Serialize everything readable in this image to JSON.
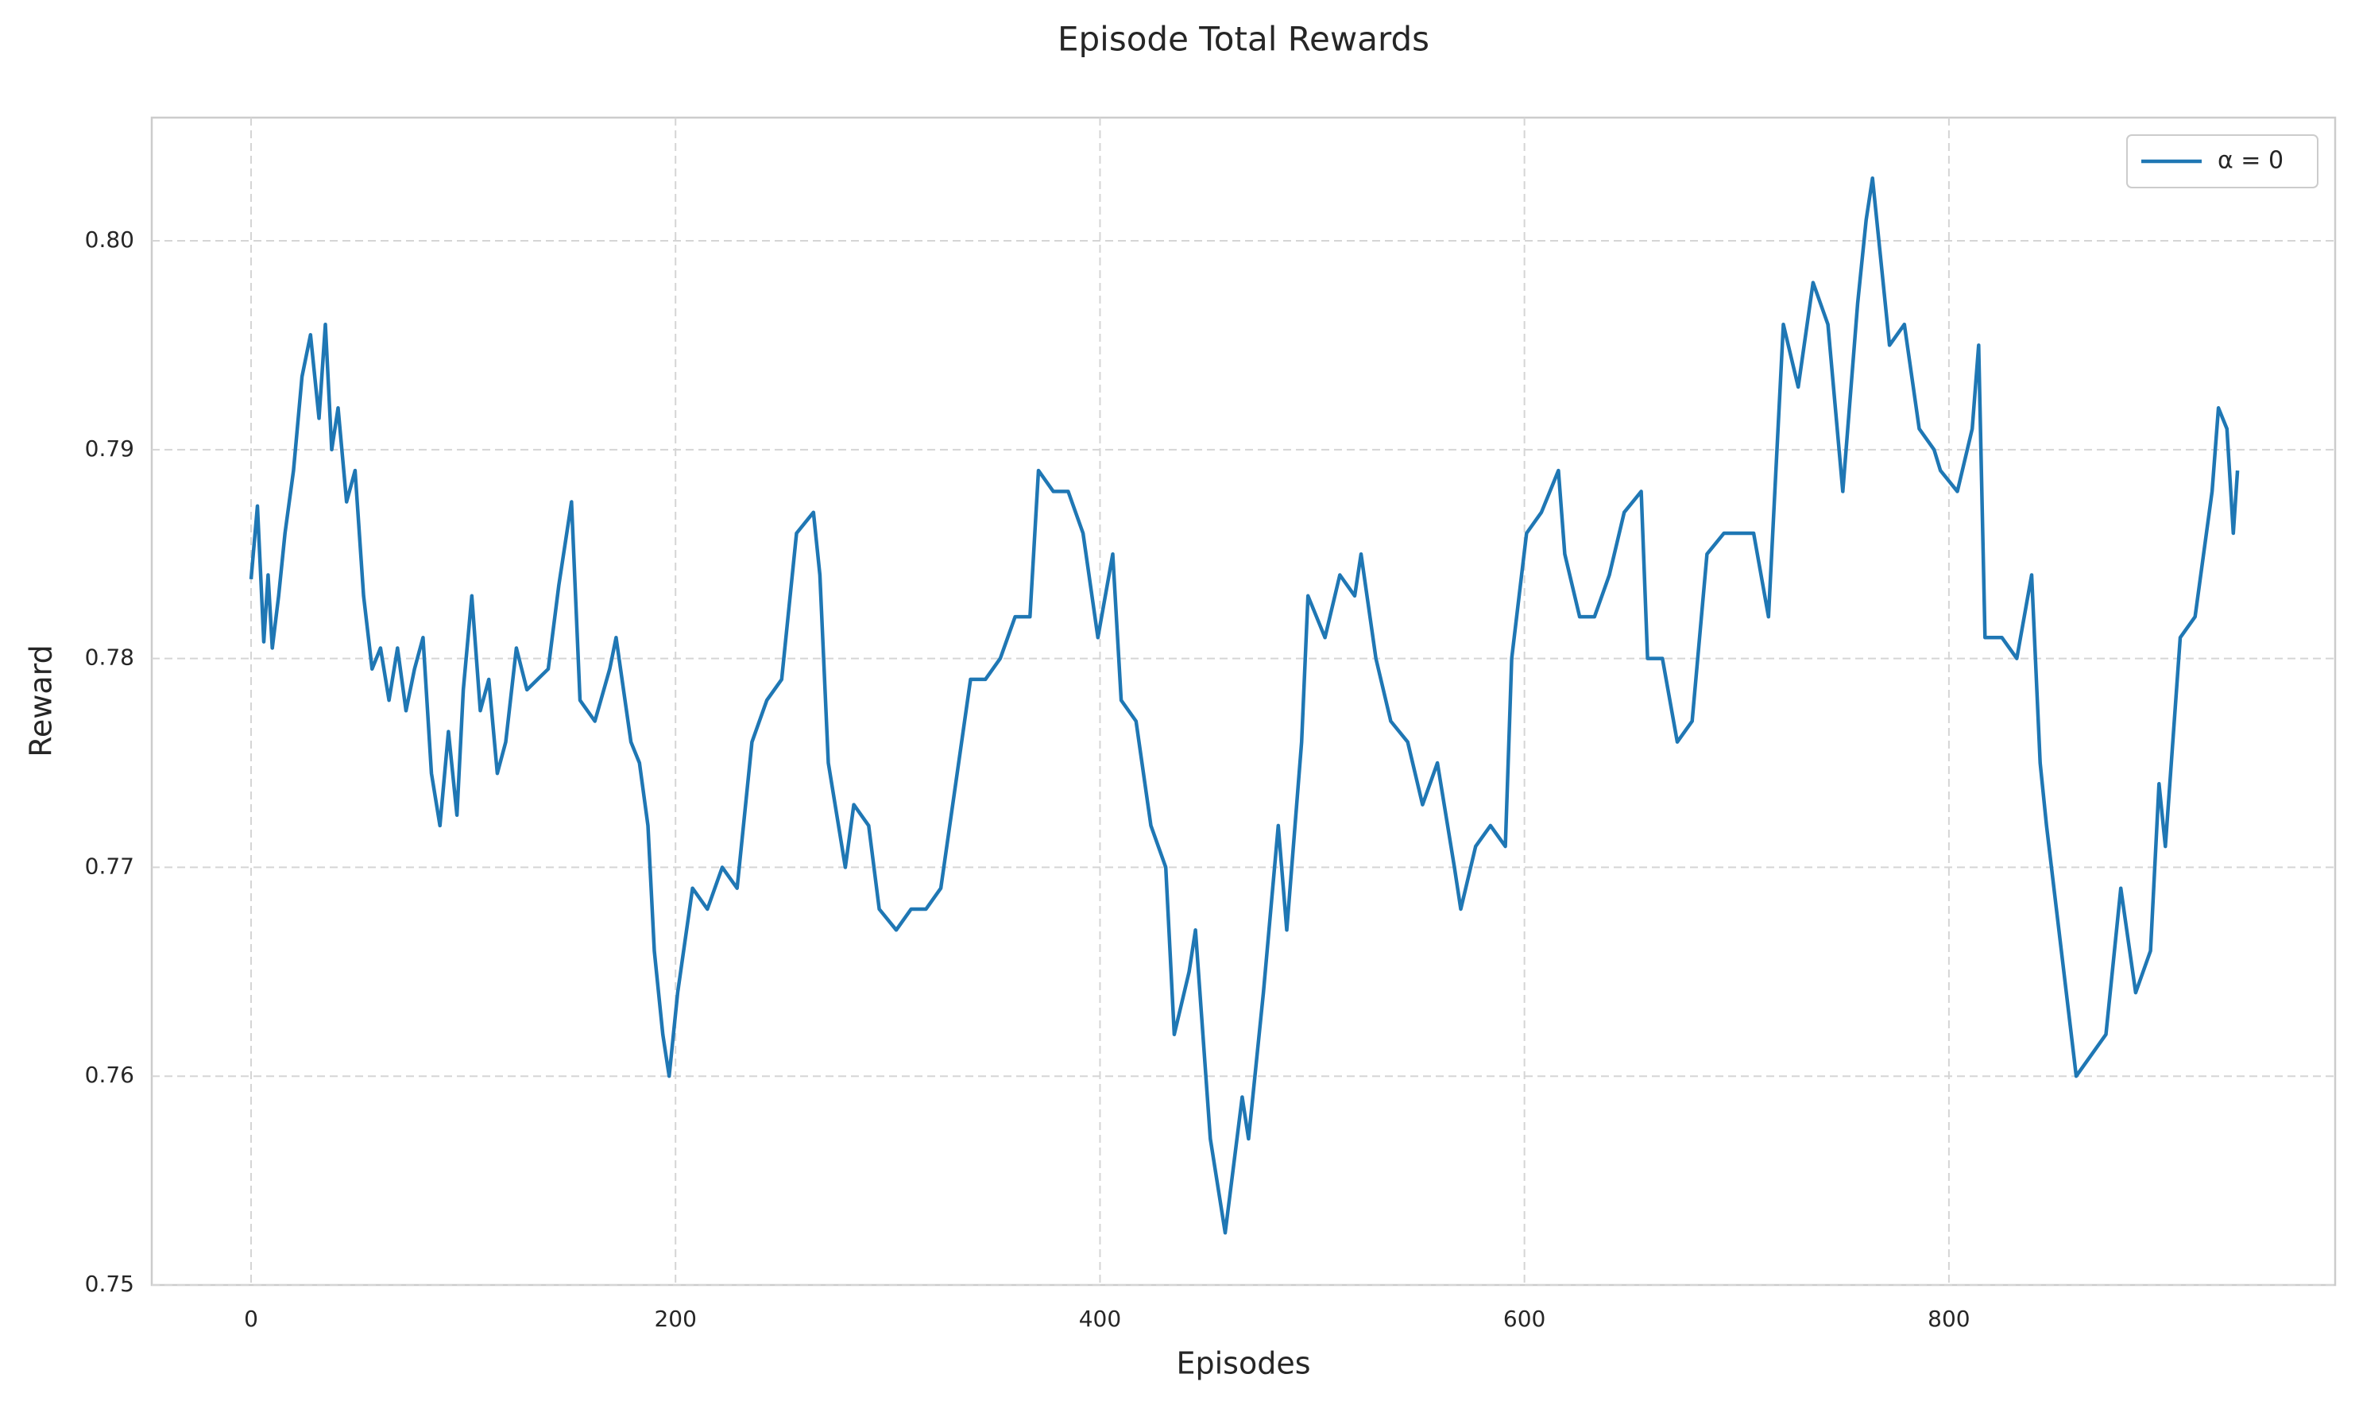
{
  "chart_data": {
    "type": "line",
    "title": "Episode Total Rewards",
    "xlabel": "Episodes",
    "ylabel": "Reward",
    "xlim": [
      -46.8,
      982
    ],
    "ylim": [
      0.75,
      0.8059
    ],
    "xticks": [
      0,
      200,
      400,
      600,
      800
    ],
    "yticks": [
      0.75,
      0.76,
      0.77,
      0.78,
      0.79,
      {
        "value": 0.8,
        "label": "0.80"
      }
    ],
    "grid": true,
    "legend": "upper right",
    "x": [
      0,
      3,
      6,
      8,
      10,
      13,
      16,
      20,
      24,
      28,
      32,
      35,
      38,
      41,
      45,
      49,
      53,
      57,
      61,
      65,
      69,
      73,
      77,
      81,
      85,
      89,
      93,
      97,
      100,
      104,
      108,
      112,
      116,
      120,
      125,
      130,
      135,
      140,
      145,
      151,
      155,
      162,
      169,
      172,
      179,
      183,
      187,
      190,
      194,
      197,
      201,
      208,
      215,
      222,
      229,
      236,
      243,
      250,
      257,
      265,
      268,
      272,
      280,
      284,
      291,
      296,
      304,
      311,
      318,
      325,
      332,
      339,
      346,
      353,
      360,
      367,
      371,
      378,
      385,
      392,
      399,
      406,
      410,
      417,
      424,
      431,
      435,
      442,
      445,
      452,
      459,
      467,
      470,
      477,
      484,
      488,
      495,
      498,
      506,
      513,
      520,
      523,
      530,
      537,
      545,
      552,
      559,
      567,
      570,
      577,
      584,
      591,
      594,
      601,
      608,
      616,
      619,
      626,
      633,
      640,
      647,
      655,
      658,
      665,
      672,
      679,
      686,
      694,
      701,
      708,
      715,
      718,
      722,
      729,
      736,
      743,
      750,
      757,
      761,
      764,
      772,
      779,
      786,
      793,
      796,
      804,
      811,
      814,
      817,
      825,
      832,
      839,
      843,
      846,
      853,
      860,
      867,
      874,
      878,
      881,
      888,
      895,
      899,
      902,
      909,
      916,
      924,
      927,
      931,
      934,
      936
    ],
    "series": [
      {
        "name": "α = 0",
        "color": "#1f77b4",
        "values": [
          0.7838,
          0.7873,
          0.7808,
          0.784,
          0.7805,
          0.783,
          0.786,
          0.789,
          0.7935,
          0.7955,
          0.7915,
          0.796,
          0.79,
          0.792,
          0.7875,
          0.789,
          0.783,
          0.7795,
          0.7805,
          0.778,
          0.7805,
          0.7775,
          0.7795,
          0.781,
          0.7745,
          0.772,
          0.7765,
          0.7725,
          0.7785,
          0.783,
          0.7775,
          0.779,
          0.7745,
          0.776,
          0.7805,
          0.7785,
          0.779,
          0.7795,
          0.7835,
          0.7875,
          0.778,
          0.777,
          0.7795,
          0.781,
          0.776,
          0.775,
          0.772,
          0.766,
          0.762,
          0.76,
          0.764,
          0.769,
          0.768,
          0.77,
          0.769,
          0.776,
          0.778,
          0.779,
          0.786,
          0.787,
          0.784,
          0.775,
          0.77,
          0.773,
          0.772,
          0.768,
          0.767,
          0.768,
          0.768,
          0.769,
          0.774,
          0.779,
          0.779,
          0.78,
          0.782,
          0.782,
          0.789,
          0.788,
          0.788,
          0.786,
          0.781,
          0.785,
          0.778,
          0.777,
          0.772,
          0.77,
          0.762,
          0.765,
          0.767,
          0.757,
          0.7525,
          0.759,
          0.757,
          0.764,
          0.772,
          0.767,
          0.776,
          0.783,
          0.781,
          0.784,
          0.783,
          0.785,
          0.78,
          0.777,
          0.776,
          0.773,
          0.775,
          0.77,
          0.768,
          0.771,
          0.772,
          0.771,
          0.78,
          0.786,
          0.787,
          0.789,
          0.785,
          0.782,
          0.782,
          0.784,
          0.787,
          0.788,
          0.78,
          0.78,
          0.776,
          0.777,
          0.785,
          0.786,
          0.786,
          0.786,
          0.782,
          0.788,
          0.796,
          0.793,
          0.798,
          0.796,
          0.788,
          0.797,
          0.801,
          0.803,
          0.795,
          0.796,
          0.791,
          0.79,
          0.789,
          0.788,
          0.791,
          0.795,
          0.781,
          0.781,
          0.78,
          0.784,
          0.775,
          0.772,
          0.766,
          0.76,
          0.761,
          0.762,
          0.766,
          0.769,
          0.764,
          0.766,
          0.774,
          0.771,
          0.781,
          0.782,
          0.788,
          0.792,
          0.791,
          0.786,
          0.789
        ]
      }
    ]
  }
}
